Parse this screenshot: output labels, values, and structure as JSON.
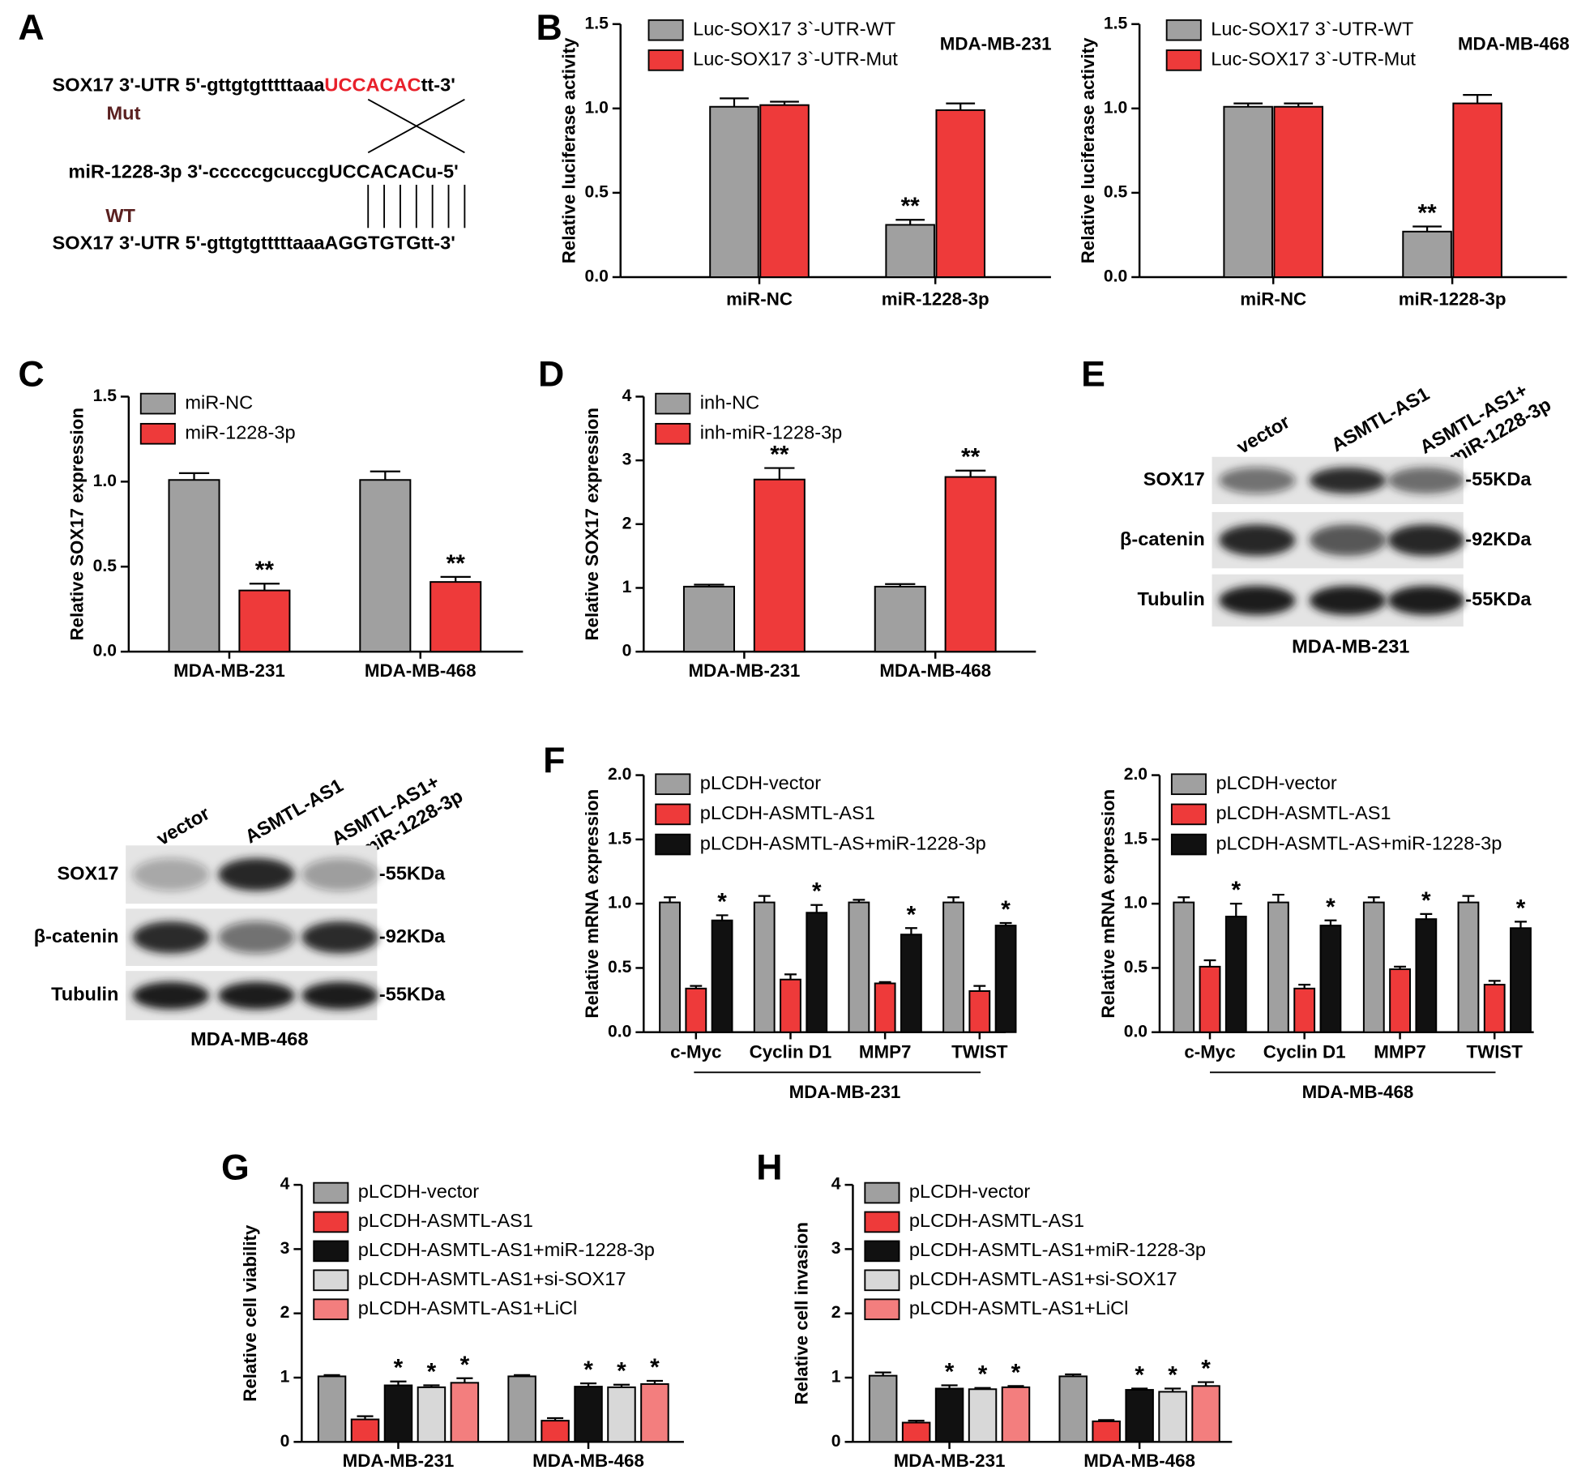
{
  "panel_labels": [
    "A",
    "B",
    "C",
    "D",
    "E",
    "F",
    "G",
    "H"
  ],
  "sequence_diagram": {
    "mut": {
      "prefix": "SOX17 3'-UTR 5'-gttgtgtttttaaa",
      "site": "UCCACAC",
      "suffix": "tt-3'"
    },
    "mut_label": "Mut",
    "mirna": "miR-1228-3p 3'-cccccgcuccgUCCACACu-5'",
    "wt_label": "WT",
    "wt": "SOX17 3'-UTR 5'-gttgtgtttttaaaAGGTGTGtt-3'"
  },
  "blots": [
    {
      "lanes": [
        [
          "vector"
        ],
        [
          "ASMTL-AS1"
        ],
        [
          "ASMTL-AS1+",
          "miR-1228-3p"
        ]
      ],
      "rows": [
        {
          "protein": "SOX17",
          "size": "-55KDa"
        },
        {
          "protein": "β-catenin",
          "size": "-92KDa"
        },
        {
          "protein": "Tubulin",
          "size": "-55KDa"
        }
      ],
      "cell_line": "MDA-MB-231"
    },
    {
      "lanes": [
        [
          "vector"
        ],
        [
          "ASMTL-AS1"
        ],
        [
          "ASMTL-AS1+",
          "miR-1228-3p"
        ]
      ],
      "rows": [
        {
          "protein": "SOX17",
          "size": "-55KDa"
        },
        {
          "protein": "β-catenin",
          "size": "-92KDa"
        },
        {
          "protein": "Tubulin",
          "size": "-55KDa"
        }
      ],
      "cell_line": "MDA-MB-468"
    }
  ],
  "chart_data": [
    {
      "type": "bar",
      "ylabel": "Relative luciferase activity",
      "inset_label": "MDA-MB-231",
      "categories": [
        "miR-NC",
        "miR-1228-3p"
      ],
      "series": [
        {
          "name": "Luc-SOX17 3`-UTR-WT",
          "color": "#a0a0a0",
          "values": [
            1.01,
            0.31
          ],
          "errors": [
            0.05,
            0.03
          ],
          "significance": [
            null,
            "**"
          ]
        },
        {
          "name": "Luc-SOX17 3`-UTR-Mut",
          "color": "#ee3a3a",
          "values": [
            1.02,
            0.99
          ],
          "errors": [
            0.02,
            0.04
          ],
          "significance": [
            null,
            null
          ]
        }
      ],
      "ylim": [
        0,
        1.5
      ],
      "yticks": [
        {
          "value": 0,
          "label": "0.0"
        },
        {
          "value": 0.5,
          "label": "0.5"
        },
        {
          "value": 1,
          "label": "1.0"
        },
        {
          "value": 1.5,
          "label": "1.5"
        }
      ]
    },
    {
      "type": "bar",
      "ylabel": "Relative luciferase activity",
      "inset_label": "MDA-MB-468",
      "categories": [
        "miR-NC",
        "miR-1228-3p"
      ],
      "series": [
        {
          "name": "Luc-SOX17 3`-UTR-WT",
          "color": "#a0a0a0",
          "values": [
            1.01,
            0.27
          ],
          "errors": [
            0.02,
            0.03
          ],
          "significance": [
            null,
            "**"
          ]
        },
        {
          "name": "Luc-SOX17 3`-UTR-Mut",
          "color": "#ee3a3a",
          "values": [
            1.01,
            1.03
          ],
          "errors": [
            0.02,
            0.05
          ],
          "significance": [
            null,
            null
          ]
        }
      ],
      "ylim": [
        0,
        1.5
      ],
      "yticks": [
        {
          "value": 0,
          "label": "0.0"
        },
        {
          "value": 0.5,
          "label": "0.5"
        },
        {
          "value": 1,
          "label": "1.0"
        },
        {
          "value": 1.5,
          "label": "1.5"
        }
      ]
    },
    {
      "type": "bar",
      "ylabel": "Relative SOX17 expression",
      "categories": [
        "MDA-MB-231",
        "MDA-MB-468"
      ],
      "series": [
        {
          "name": "miR-NC",
          "color": "#a0a0a0",
          "values": [
            1.01,
            1.01
          ],
          "errors": [
            0.04,
            0.05
          ],
          "significance": [
            null,
            null
          ]
        },
        {
          "name": "miR-1228-3p",
          "color": "#ee3a3a",
          "values": [
            0.36,
            0.41
          ],
          "errors": [
            0.04,
            0.03
          ],
          "significance": [
            "**",
            "**"
          ]
        }
      ],
      "ylim": [
        0,
        1.5
      ],
      "yticks": [
        {
          "value": 0,
          "label": "0.0"
        },
        {
          "value": 0.5,
          "label": "0.5"
        },
        {
          "value": 1,
          "label": "1.0"
        },
        {
          "value": 1.5,
          "label": "1.5"
        }
      ]
    },
    {
      "type": "bar",
      "ylabel": "Relative SOX17 expression",
      "categories": [
        "MDA-MB-231",
        "MDA-MB-468"
      ],
      "series": [
        {
          "name": "inh-NC",
          "color": "#a0a0a0",
          "values": [
            1.02,
            1.02
          ],
          "errors": [
            0.03,
            0.04
          ],
          "significance": [
            null,
            null
          ]
        },
        {
          "name": "inh-miR-1228-3p",
          "color": "#ee3a3a",
          "values": [
            2.7,
            2.74
          ],
          "errors": [
            0.18,
            0.1
          ],
          "significance": [
            "**",
            "**"
          ]
        }
      ],
      "ylim": [
        0,
        4
      ],
      "yticks": [
        0,
        1,
        2,
        3,
        4
      ]
    },
    {
      "type": "bar",
      "ylabel": "Relative mRNA expression",
      "group_label": "MDA-MB-231",
      "categories": [
        "c-Myc",
        "Cyclin D1",
        "MMP7",
        "TWIST"
      ],
      "series": [
        {
          "name": "pLCDH-vector",
          "color": "#a0a0a0",
          "values": [
            1.01,
            1.01,
            1.01,
            1.01
          ],
          "errors": [
            0.04,
            0.05,
            0.02,
            0.04
          ],
          "significance": [
            null,
            null,
            null,
            null
          ]
        },
        {
          "name": "pLCDH-ASMTL-AS1",
          "color": "#ee3a3a",
          "values": [
            0.34,
            0.41,
            0.38,
            0.32
          ],
          "errors": [
            0.02,
            0.04,
            0.01,
            0.04
          ],
          "significance": [
            null,
            null,
            null,
            null
          ]
        },
        {
          "name": "pLCDH-ASMTL-AS+miR-1228-3p",
          "color": "#111111",
          "values": [
            0.87,
            0.93,
            0.76,
            0.83
          ],
          "errors": [
            0.04,
            0.06,
            0.05,
            0.02
          ],
          "significance": [
            "*",
            "*",
            "*",
            "*"
          ]
        }
      ],
      "ylim": [
        0,
        2
      ],
      "yticks": [
        {
          "value": 0,
          "label": "0.0"
        },
        {
          "value": 0.5,
          "label": "0.5"
        },
        {
          "value": 1,
          "label": "1.0"
        },
        {
          "value": 1.5,
          "label": "1.5"
        },
        {
          "value": 2,
          "label": "2.0"
        }
      ]
    },
    {
      "type": "bar",
      "ylabel": "Relative mRNA expression",
      "group_label": "MDA-MB-468",
      "categories": [
        "c-Myc",
        "Cyclin D1",
        "MMP7",
        "TWIST"
      ],
      "series": [
        {
          "name": "pLCDH-vector",
          "color": "#a0a0a0",
          "values": [
            1.01,
            1.01,
            1.01,
            1.01
          ],
          "errors": [
            0.04,
            0.06,
            0.04,
            0.05
          ],
          "significance": [
            null,
            null,
            null,
            null
          ]
        },
        {
          "name": "pLCDH-ASMTL-AS1",
          "color": "#ee3a3a",
          "values": [
            0.51,
            0.34,
            0.49,
            0.37
          ],
          "errors": [
            0.05,
            0.03,
            0.02,
            0.03
          ],
          "significance": [
            null,
            null,
            null,
            null
          ]
        },
        {
          "name": "pLCDH-ASMTL-AS+miR-1228-3p",
          "color": "#111111",
          "values": [
            0.9,
            0.83,
            0.88,
            0.81
          ],
          "errors": [
            0.1,
            0.04,
            0.04,
            0.05
          ],
          "significance": [
            "*",
            "*",
            "*",
            "*"
          ]
        }
      ],
      "ylim": [
        0,
        2
      ],
      "yticks": [
        {
          "value": 0,
          "label": "0.0"
        },
        {
          "value": 0.5,
          "label": "0.5"
        },
        {
          "value": 1,
          "label": "1.0"
        },
        {
          "value": 1.5,
          "label": "1.5"
        },
        {
          "value": 2,
          "label": "2.0"
        }
      ]
    },
    {
      "type": "bar",
      "ylabel": "Relative cell viability",
      "categories": [
        "MDA-MB-231",
        "MDA-MB-468"
      ],
      "series": [
        {
          "name": "pLCDH-vector",
          "color": "#a0a0a0",
          "values": [
            1.02,
            1.02
          ],
          "errors": [
            0.02,
            0.02
          ],
          "significance": [
            null,
            null
          ]
        },
        {
          "name": "pLCDH-ASMTL-AS1",
          "color": "#ee3a3a",
          "values": [
            0.35,
            0.33
          ],
          "errors": [
            0.05,
            0.04
          ],
          "significance": [
            null,
            null
          ]
        },
        {
          "name": "pLCDH-ASMTL-AS1+miR-1228-3p",
          "color": "#111111",
          "values": [
            0.88,
            0.86
          ],
          "errors": [
            0.06,
            0.05
          ],
          "significance": [
            "*",
            "*"
          ]
        },
        {
          "name": "pLCDH-ASMTL-AS1+si-SOX17",
          "color": "#d8d8d8",
          "values": [
            0.85,
            0.85
          ],
          "errors": [
            0.03,
            0.04
          ],
          "significance": [
            "*",
            "*"
          ]
        },
        {
          "name": "pLCDH-ASMTL-AS1+LiCl",
          "color": "#f37e7e",
          "values": [
            0.92,
            0.9
          ],
          "errors": [
            0.07,
            0.05
          ],
          "significance": [
            "*",
            "*"
          ]
        }
      ],
      "ylim": [
        0,
        4
      ],
      "yticks": [
        0,
        1,
        2,
        3,
        4
      ]
    },
    {
      "type": "bar",
      "ylabel": "Relative cell invasion",
      "categories": [
        "MDA-MB-231",
        "MDA-MB-468"
      ],
      "series": [
        {
          "name": "pLCDH-vector",
          "color": "#a0a0a0",
          "values": [
            1.03,
            1.02
          ],
          "errors": [
            0.05,
            0.03
          ],
          "significance": [
            null,
            null
          ]
        },
        {
          "name": "pLCDH-ASMTL-AS1",
          "color": "#ee3a3a",
          "values": [
            0.3,
            0.32
          ],
          "errors": [
            0.03,
            0.02
          ],
          "significance": [
            null,
            null
          ]
        },
        {
          "name": "pLCDH-ASMTL-AS1+miR-1228-3p",
          "color": "#111111",
          "values": [
            0.83,
            0.81
          ],
          "errors": [
            0.05,
            0.02
          ],
          "significance": [
            "*",
            "*"
          ]
        },
        {
          "name": "pLCDH-ASMTL-AS1+si-SOX17",
          "color": "#d8d8d8",
          "values": [
            0.82,
            0.78
          ],
          "errors": [
            0.02,
            0.05
          ],
          "significance": [
            "*",
            "*"
          ]
        },
        {
          "name": "pLCDH-ASMTL-AS1+LiCl",
          "color": "#f37e7e",
          "values": [
            0.85,
            0.87
          ],
          "errors": [
            0.02,
            0.06
          ],
          "significance": [
            "*",
            "*"
          ]
        }
      ],
      "ylim": [
        0,
        4
      ],
      "yticks": [
        0,
        1,
        2,
        3,
        4
      ]
    }
  ]
}
